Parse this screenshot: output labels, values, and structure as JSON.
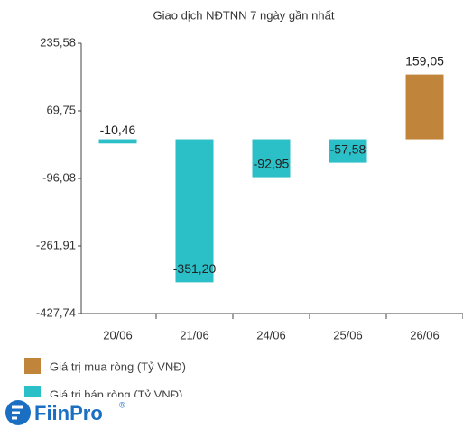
{
  "chart_data": {
    "type": "bar",
    "title": "Giao dịch NĐTNN 7 ngày gần nhất",
    "categories": [
      "20/06",
      "21/06",
      "24/06",
      "25/06",
      "26/06"
    ],
    "series": [
      {
        "name": "Giá trị mua ròng (Tỷ VNĐ)",
        "color": "#c0843a",
        "values": [
          null,
          null,
          null,
          null,
          159.05
        ],
        "value_labels": [
          null,
          null,
          null,
          null,
          "159,05"
        ]
      },
      {
        "name": "Giá trị bán ròng (Tỷ VNĐ)",
        "color": "#2bbfc7",
        "values": [
          -10.46,
          -351.2,
          -92.95,
          -57.58,
          null
        ],
        "value_labels": [
          "-10,46",
          "-351,20",
          "-92,95",
          "-57,58",
          null
        ]
      }
    ],
    "ylim": [
      -427.74,
      235.58
    ],
    "yticks": [
      {
        "value": -427.74,
        "label": "-427,74"
      },
      {
        "value": -261.91,
        "label": "-261,91"
      },
      {
        "value": -96.08,
        "label": "-96,08"
      },
      {
        "value": 69.75,
        "label": "69,75"
      },
      {
        "value": 235.58,
        "label": "235,58"
      }
    ],
    "grid": false,
    "legend": "bottom-left"
  },
  "brand": {
    "name": "FiinPro",
    "mark": "®"
  }
}
